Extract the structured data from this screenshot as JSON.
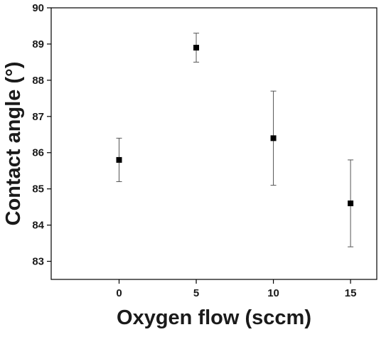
{
  "chart_data": {
    "type": "scatter",
    "xlabel": "Oxygen flow (sccm)",
    "ylabel": "Contact angle (°)",
    "xlim": [
      -4.4,
      16.7
    ],
    "ylim": [
      82.5,
      90
    ],
    "x_ticks": [
      0,
      5,
      10,
      15
    ],
    "y_ticks": [
      83,
      84,
      85,
      86,
      87,
      88,
      89,
      90
    ],
    "grid": false,
    "legend": "none",
    "series": [
      {
        "marker": "square",
        "color": "#000000",
        "points": [
          {
            "x": 0,
            "y": 85.8,
            "err_low": 85.2,
            "err_high": 86.4
          },
          {
            "x": 5,
            "y": 88.9,
            "err_low": 88.5,
            "err_high": 89.3
          },
          {
            "x": 10,
            "y": 86.4,
            "err_low": 85.1,
            "err_high": 87.7
          },
          {
            "x": 15,
            "y": 84.6,
            "err_low": 83.4,
            "err_high": 85.8
          }
        ]
      }
    ]
  }
}
